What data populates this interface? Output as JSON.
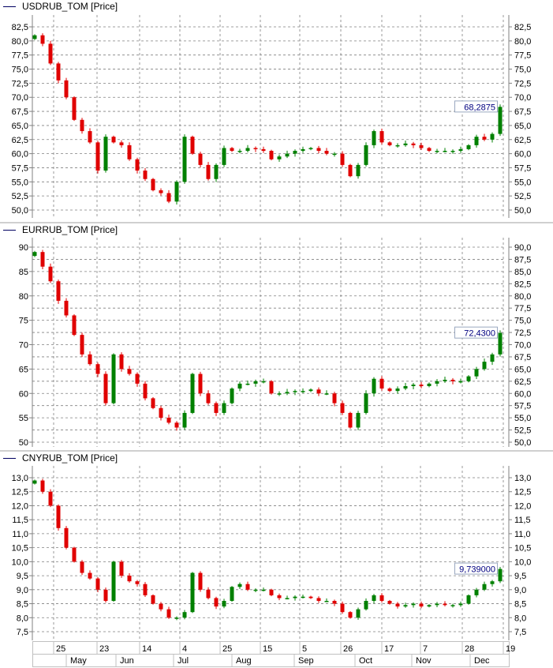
{
  "chart_data": [
    {
      "type": "candlestick",
      "title": "USDRUB_TOM [Price]",
      "left_ticks": [
        "82,5",
        "80,0",
        "77,5",
        "75,0",
        "72,5",
        "70,0",
        "67,5",
        "65,0",
        "62,5",
        "60,0",
        "57,5",
        "55,0",
        "52,5",
        "50,0"
      ],
      "right_ticks": [
        "82,5",
        "80,0",
        "77,5",
        "75,0",
        "72,5",
        "70,0",
        "67,5",
        "65,0",
        "62,5",
        "60,0",
        "57,5",
        "55,0",
        "52,5",
        "50,0"
      ],
      "ylim": [
        50,
        82.5
      ],
      "last_value": "68,2875",
      "closes": [
        81,
        79.5,
        76,
        73,
        70,
        66,
        64,
        62,
        57,
        63,
        62,
        61.5,
        59,
        57,
        55.5,
        53.5,
        53,
        51.5,
        55,
        63,
        60,
        58,
        55.5,
        58,
        61,
        60.5,
        60.5,
        61,
        60.8,
        60.5,
        59,
        59.5,
        60,
        60.5,
        60.8,
        61,
        60.5,
        60,
        60,
        58,
        56,
        58,
        61.5,
        64,
        62,
        61.5,
        61.5,
        61.8,
        61.5,
        61,
        60.5,
        60.5,
        60.5,
        60.5,
        60.8,
        61.5,
        63,
        62.5,
        63.5,
        68.3
      ]
    },
    {
      "type": "candlestick",
      "title": "EURRUB_TOM [Price]",
      "left_ticks": [
        "90",
        "85",
        "80",
        "75",
        "70",
        "65",
        "60",
        "55",
        "50"
      ],
      "right_ticks": [
        "90,0",
        "87,5",
        "85,0",
        "82,5",
        "80,0",
        "77,5",
        "75,0",
        "72,5",
        "70,0",
        "67,5",
        "65,0",
        "62,5",
        "60,0",
        "57,5",
        "55,0",
        "52,5",
        "50,0"
      ],
      "ylim": [
        50,
        90
      ],
      "last_value": "72,4300",
      "closes": [
        89,
        86,
        83,
        79,
        76,
        72,
        68,
        66,
        64,
        58,
        68,
        65,
        64,
        62,
        59,
        57,
        55,
        54,
        53,
        56,
        64,
        60,
        58,
        56,
        58,
        61,
        62,
        62,
        62.5,
        62.5,
        60,
        60,
        60.3,
        60.5,
        60.5,
        60.8,
        60,
        60,
        58,
        56,
        53,
        56,
        60,
        63,
        61,
        60.5,
        61,
        61.5,
        61.8,
        61.5,
        62,
        62.5,
        62.8,
        62.5,
        62.5,
        63.5,
        65,
        66.5,
        68,
        72.4
      ]
    },
    {
      "type": "candlestick",
      "title": "CNYRUB_TOM [Price]",
      "left_ticks": [
        "13,0",
        "12,5",
        "12,0",
        "11,5",
        "11,0",
        "10,5",
        "10,0",
        "9,5",
        "9,0",
        "8,5",
        "8,0",
        "7,5"
      ],
      "right_ticks": [
        "13,0",
        "12,5",
        "12,0",
        "11,5",
        "11,0",
        "10,5",
        "10,0",
        "9,5",
        "9,0",
        "8,5",
        "8,0",
        "7,5"
      ],
      "ylim": [
        7.5,
        13
      ],
      "last_value": "9,739000",
      "closes": [
        12.9,
        12.5,
        12,
        11.2,
        10.5,
        10,
        9.6,
        9.4,
        9,
        8.6,
        10,
        9.5,
        9.3,
        9.2,
        8.8,
        8.5,
        8.3,
        8.0,
        8.0,
        8.2,
        9.6,
        9,
        8.7,
        8.4,
        8.6,
        9.1,
        9.2,
        9.0,
        9.0,
        9.0,
        8.8,
        8.7,
        8.7,
        8.75,
        8.75,
        8.7,
        8.6,
        8.6,
        8.5,
        8.2,
        8.0,
        8.3,
        8.6,
        8.8,
        8.6,
        8.5,
        8.4,
        8.45,
        8.5,
        8.4,
        8.45,
        8.5,
        8.45,
        8.45,
        8.5,
        8.8,
        9.0,
        9.2,
        9.3,
        9.74
      ]
    }
  ],
  "x_axis": {
    "day_ticks": [
      "25",
      "23",
      "14",
      "4",
      "25",
      "15",
      "5",
      "26",
      "17",
      "7",
      "28",
      "19"
    ],
    "months": [
      "May",
      "Jun",
      "Jul",
      "Aug",
      "Sep",
      "Oct",
      "Nov",
      "Dec"
    ]
  },
  "colors": {
    "up": "#008000",
    "down": "#e00000",
    "grid": "#808080",
    "value_text": "#000080"
  }
}
